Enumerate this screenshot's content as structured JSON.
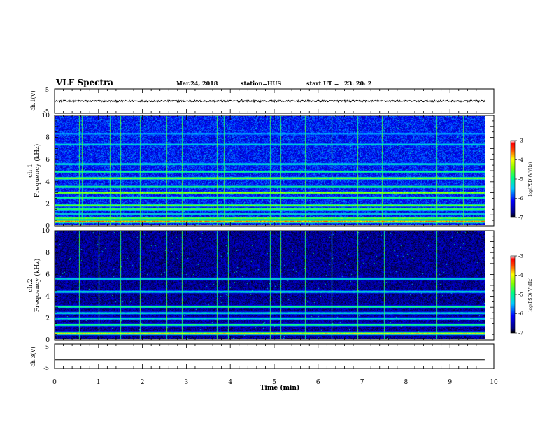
{
  "header": {
    "title": "VLF Spectra",
    "date": "Mar.24, 2018",
    "station": "station=HUS",
    "start_label": "start  UT  =",
    "start_time": "23: 20: 2"
  },
  "chart_data": {
    "type": "heatmap",
    "x_axis": {
      "label": "Time  (min)",
      "range": [
        0,
        10
      ],
      "ticks": [
        "0",
        "1",
        "2",
        "3",
        "4",
        "5",
        "6",
        "7",
        "8",
        "9",
        "10"
      ]
    },
    "panels": [
      {
        "id": "ch1-waveform",
        "type": "line",
        "ylabel": "ch.1(V)",
        "ylim": [
          -5,
          5
        ],
        "ytick_labels": [
          "5",
          "-5"
        ],
        "trace_level": 0,
        "trace_end_min": 9.8,
        "spikes": [
          {
            "t": 4.25,
            "v": 0.8
          }
        ]
      },
      {
        "id": "ch1-spectrogram",
        "type": "heatmap",
        "ylabel_channel": "ch.1",
        "ylabel": "Frequency  (kHz)",
        "ylim": [
          0,
          10
        ],
        "ytick_labels": [
          "0",
          "2",
          "4",
          "6",
          "8",
          "10"
        ],
        "data_end_min": 9.8,
        "bands_khz": [
          {
            "f": 0.3,
            "level": 0.95
          },
          {
            "f": 0.6,
            "level": 0.7
          },
          {
            "f": 1.0,
            "level": 0.5
          },
          {
            "f": 1.45,
            "level": 0.65
          },
          {
            "f": 1.8,
            "level": 0.7
          },
          {
            "f": 2.5,
            "level": 0.6
          },
          {
            "f": 2.95,
            "level": 0.75
          },
          {
            "f": 3.5,
            "level": 0.65
          },
          {
            "f": 4.3,
            "level": 0.75
          },
          {
            "f": 4.9,
            "level": 0.6
          },
          {
            "f": 5.6,
            "level": 0.55
          },
          {
            "f": 7.4,
            "level": 0.5
          },
          {
            "f": 8.4,
            "level": 0.45
          }
        ],
        "spikes_min": [
          0.55,
          0.62,
          1.25,
          1.5,
          1.95,
          2.55,
          2.9,
          3.7,
          3.85,
          4.9,
          5.15,
          5.7,
          6.3,
          6.9,
          7.45,
          8.7,
          9.3
        ]
      },
      {
        "id": "ch2-spectrogram",
        "type": "heatmap",
        "ylabel_channel": "ch.2",
        "ylabel": "Frequency  (kHz)",
        "ylim": [
          0,
          10
        ],
        "ytick_labels": [
          "0",
          "2",
          "4",
          "6",
          "8",
          "10"
        ],
        "data_end_min": 9.8,
        "bands_khz": [
          {
            "f": 0.5,
            "level": 0.85
          },
          {
            "f": 1.3,
            "level": 0.6
          },
          {
            "f": 1.9,
            "level": 0.5
          },
          {
            "f": 2.4,
            "level": 0.55
          },
          {
            "f": 3.0,
            "level": 0.6
          },
          {
            "f": 4.4,
            "level": 0.55
          },
          {
            "f": 5.6,
            "level": 0.5
          }
        ],
        "spikes_min": [
          0.55,
          1.0,
          1.5,
          1.95,
          2.55,
          2.9,
          3.7,
          3.95,
          4.9,
          5.15,
          5.7,
          6.3,
          6.9,
          7.5,
          8.7
        ]
      },
      {
        "id": "ch3-waveform",
        "type": "line",
        "ylabel": "ch.3(V)",
        "ylim": [
          -5,
          5
        ],
        "ytick_labels": [
          "5",
          "-5"
        ],
        "trace_level": -1.5,
        "trace_end_min": 9.8
      }
    ],
    "colorbars": [
      {
        "channel": "ch.1",
        "label": "log(PSD)(V²/Hz)",
        "range": [
          -7,
          -3
        ],
        "tick_labels": [
          "-3",
          "-4",
          "-5",
          "-6",
          "-7"
        ]
      },
      {
        "channel": "ch.2",
        "label": "log(PSD)(V²/Hz)",
        "range": [
          -7,
          -3
        ],
        "tick_labels": [
          "-3",
          "-4",
          "-5",
          "-6",
          "-7"
        ]
      }
    ]
  }
}
